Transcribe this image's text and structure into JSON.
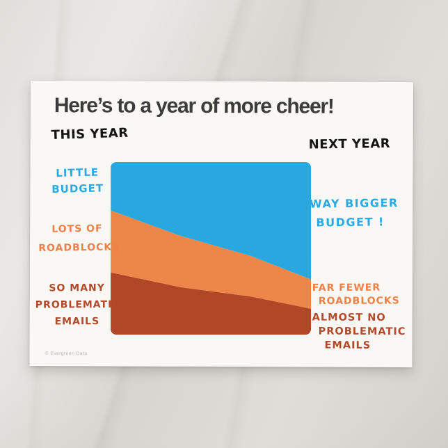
{
  "postcard": {
    "title": "Here’s to a year of more cheer!",
    "watermark": "© Evergreen Data"
  },
  "chart_data": {
    "type": "area",
    "variant": "stacked-slope-comparison",
    "title": "Here’s to a year of more cheer!",
    "categories": [
      "THIS YEAR",
      "NEXT YEAR"
    ],
    "column_labels": {
      "left": "THIS YEAR",
      "right": "NEXT YEAR"
    },
    "units": "percent of total stack height",
    "stack_order": "bottom-to-top",
    "axes": {
      "visible": false
    },
    "legend": "hand-written annotations beside chart",
    "series": [
      {
        "name": "Problematic emails",
        "color": "#b04827",
        "values_pct": [
          36,
          15
        ]
      },
      {
        "name": "Roadblocks",
        "color": "#ed8749",
        "values_pct": [
          36,
          17
        ]
      },
      {
        "name": "Budget",
        "color": "#29a8e0",
        "values_pct": [
          28,
          68
        ]
      }
    ],
    "annotations": {
      "left": [
        {
          "series": "Budget",
          "color": "#2ba9e2",
          "lines": [
            "LITTLE",
            "BUDGET"
          ]
        },
        {
          "series": "Roadblocks",
          "color": "#ee8147",
          "lines": [
            "LOTS OF",
            "ROADBLOCKS"
          ]
        },
        {
          "series": "Problematic emails",
          "color": "#b1492a",
          "lines": [
            "SO MANY",
            "PROBLEMATIC",
            "EMAILS"
          ]
        }
      ],
      "right": [
        {
          "series": "Budget",
          "color": "#2ba9e2",
          "lines": [
            "WAY BIGGER",
            "BUDGET !"
          ]
        },
        {
          "series": "Roadblocks",
          "color": "#ee8147",
          "lines": [
            "FAR FEWER",
            "ROADBLOCKS"
          ]
        },
        {
          "series": "Problematic emails",
          "color": "#b1492a",
          "lines": [
            "ALMOST NO",
            "PROBLEMATIC",
            "EMAILS"
          ]
        }
      ]
    }
  }
}
